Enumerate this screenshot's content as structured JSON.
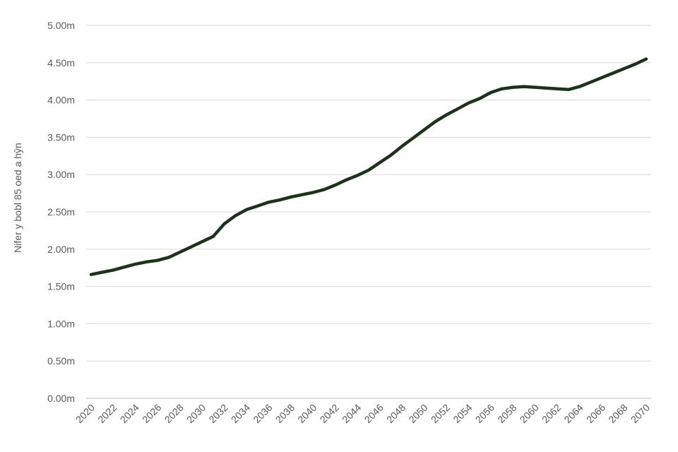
{
  "chart_data": {
    "type": "line",
    "title": "",
    "xlabel": "",
    "ylabel": "Nifer y bobl 85 oed a hŷn",
    "grid": true,
    "legend": "none",
    "ylim": [
      0,
      5.0
    ],
    "y_ticks": [
      "0.00m",
      "0.50m",
      "1.00m",
      "1.50m",
      "2.00m",
      "2.50m",
      "3.00m",
      "3.50m",
      "4.00m",
      "4.50m",
      "5.00m"
    ],
    "x_ticks": [
      "2020",
      "2022",
      "2024",
      "2026",
      "2028",
      "2030",
      "2032",
      "2034",
      "2036",
      "2038",
      "2040",
      "2042",
      "2044",
      "2046",
      "2048",
      "2050",
      "2052",
      "2054",
      "2056",
      "2058",
      "2060",
      "2062",
      "2064",
      "2066",
      "2068",
      "2070"
    ],
    "line_color": "#1a3319",
    "series": [
      {
        "x": [
          2020,
          2021,
          2022,
          2023,
          2024,
          2025,
          2026,
          2027,
          2028,
          2029,
          2030,
          2031,
          2032,
          2033,
          2034,
          2035,
          2036,
          2037,
          2038,
          2039,
          2040,
          2041,
          2042,
          2043,
          2044,
          2045,
          2046,
          2047,
          2048,
          2049,
          2050,
          2051,
          2052,
          2053,
          2054,
          2055,
          2056,
          2057,
          2058,
          2059,
          2060,
          2061,
          2062,
          2063,
          2064,
          2065,
          2066,
          2067,
          2068,
          2069,
          2070
        ],
        "values": [
          1.66,
          1.69,
          1.72,
          1.76,
          1.8,
          1.83,
          1.85,
          1.89,
          1.96,
          2.03,
          2.1,
          2.17,
          2.34,
          2.45,
          2.53,
          2.58,
          2.63,
          2.66,
          2.7,
          2.73,
          2.76,
          2.8,
          2.86,
          2.93,
          2.99,
          3.06,
          3.16,
          3.26,
          3.38,
          3.49,
          3.6,
          3.71,
          3.8,
          3.88,
          3.96,
          4.02,
          4.1,
          4.15,
          4.17,
          4.18,
          4.17,
          4.16,
          4.15,
          4.14,
          4.18,
          4.24,
          4.3,
          4.36,
          4.42,
          4.48,
          4.55
        ]
      }
    ]
  }
}
